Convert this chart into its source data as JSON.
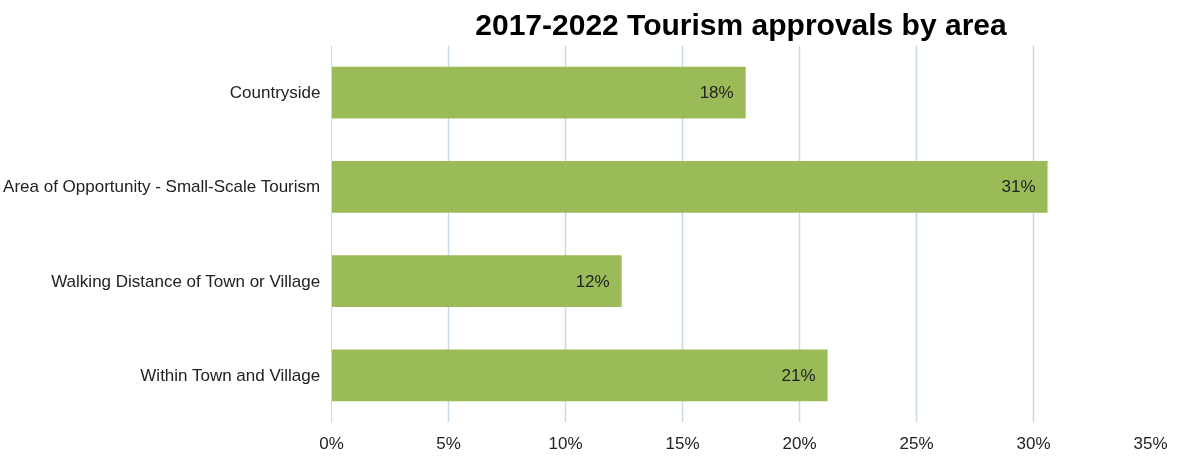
{
  "chart_data": {
    "type": "bar",
    "orientation": "horizontal",
    "title": "2017-2022 Tourism approvals by area",
    "categories": [
      "Countryside",
      "Area of Opportunity - Small-Scale Tourism",
      "Walking Distance of Town or Village",
      "Within Town and Village"
    ],
    "values": [
      17.7,
      30.6,
      12.4,
      21.2
    ],
    "value_labels": [
      "18%",
      "31%",
      "12%",
      "21%"
    ],
    "color": "#9bbb59",
    "xlim": [
      0,
      35
    ],
    "xticks": [
      {
        "value": 0,
        "label": "0%"
      },
      {
        "value": 5,
        "label": "5%"
      },
      {
        "value": 10,
        "label": "10%"
      },
      {
        "value": 15,
        "label": "15%"
      },
      {
        "value": 20,
        "label": "20%"
      },
      {
        "value": 25,
        "label": "25%"
      },
      {
        "value": 30,
        "label": "30%"
      },
      {
        "value": 35,
        "label": "35%"
      }
    ],
    "grid": "x"
  }
}
